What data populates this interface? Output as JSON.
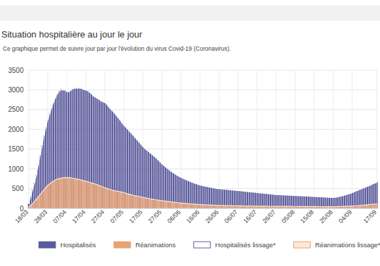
{
  "chart_data": {
    "type": "bar",
    "title": "Situation hospitalière au jour le jour",
    "subtitle": "Ce graphique permet de suivre jour par jour l'évolution du virus Covid-19 (Coronavirus).",
    "categories": [
      "18/03",
      null,
      null,
      null,
      null,
      null,
      null,
      null,
      null,
      null,
      "28/03",
      null,
      null,
      null,
      null,
      null,
      null,
      null,
      null,
      null,
      "07/04",
      null,
      null,
      null,
      null,
      null,
      null,
      null,
      null,
      null,
      "17/04",
      null,
      null,
      null,
      null,
      null,
      null,
      null,
      null,
      null,
      "27/04",
      null,
      null,
      null,
      null,
      null,
      null,
      null,
      null,
      null,
      "07/05",
      null,
      null,
      null,
      null,
      null,
      null,
      null,
      null,
      null,
      "17/05",
      null,
      null,
      null,
      null,
      null,
      null,
      null,
      null,
      null,
      "27/05",
      null,
      null,
      null,
      null,
      null,
      null,
      null,
      null,
      null,
      "06/06",
      null,
      null,
      null,
      null,
      null,
      null,
      null,
      null,
      null,
      "16/06",
      null,
      null,
      null,
      null,
      null,
      null,
      null,
      null,
      null,
      "26/06",
      null,
      null,
      null,
      null,
      null,
      null,
      null,
      null,
      null,
      "06/07",
      null,
      null,
      null,
      null,
      null,
      null,
      null,
      null,
      null,
      "16/07",
      null,
      null,
      null,
      null,
      null,
      null,
      null,
      null,
      null,
      "26/07",
      null,
      null,
      null,
      null,
      null,
      null,
      null,
      null,
      null,
      "05/08",
      null,
      null,
      null,
      null,
      null,
      null,
      null,
      null,
      null,
      "15/08",
      null,
      null,
      null,
      null,
      null,
      null,
      null,
      null,
      null,
      "25/08",
      null,
      null,
      null,
      null,
      null,
      null,
      null,
      null,
      null,
      "04/09",
      null,
      null,
      null,
      null,
      null,
      null,
      null,
      null,
      null,
      null,
      null,
      null,
      "17/09"
    ],
    "series": [
      {
        "name": "Hospitalisés",
        "type": "bar",
        "color": "#5b5a9c",
        "values": [
          120,
          300,
          480,
          650,
          850,
          1100,
          1350,
          1600,
          1850,
          2050,
          2250,
          2400,
          2550,
          2680,
          2800,
          2900,
          2980,
          3020,
          2990,
          3000,
          2950,
          2940,
          2980,
          3030,
          3050,
          3040,
          3060,
          3050,
          3030,
          3010,
          3000,
          2980,
          2940,
          2900,
          2850,
          2820,
          2790,
          2760,
          2720,
          2700,
          2680,
          2640,
          2580,
          2520,
          2470,
          2420,
          2360,
          2300,
          2240,
          2170,
          2110,
          2060,
          2010,
          1950,
          1900,
          1850,
          1790,
          1740,
          1680,
          1620,
          1570,
          1520,
          1480,
          1440,
          1400,
          1360,
          1320,
          1280,
          1230,
          1180,
          1130,
          1090,
          1050,
          1010,
          970,
          930,
          900,
          870,
          840,
          810,
          790,
          760,
          740,
          720,
          700,
          680,
          660,
          640,
          625,
          610,
          595,
          580,
          570,
          560,
          550,
          540,
          530,
          520,
          510,
          505,
          500,
          495,
          490,
          485,
          480,
          475,
          470,
          465,
          460,
          455,
          450,
          445,
          440,
          435,
          430,
          425,
          420,
          415,
          410,
          405,
          400,
          395,
          390,
          385,
          380,
          375,
          370,
          365,
          360,
          355,
          350,
          348,
          345,
          342,
          340,
          338,
          335,
          332,
          330,
          328,
          325,
          322,
          320,
          318,
          315,
          312,
          310,
          308,
          305,
          302,
          300,
          298,
          295,
          292,
          290,
          288,
          285,
          282,
          280,
          278,
          275,
          280,
          290,
          300,
          310,
          320,
          335,
          350,
          365,
          380,
          400,
          420,
          440,
          460,
          480,
          500,
          520,
          540,
          560,
          580,
          600,
          630,
          650,
          660
        ]
      },
      {
        "name": "Réanimations",
        "type": "bar",
        "color": "#e9a274",
        "values": [
          30,
          70,
          120,
          170,
          230,
          290,
          350,
          410,
          470,
          530,
          580,
          620,
          660,
          690,
          720,
          740,
          755,
          765,
          775,
          780,
          785,
          780,
          775,
          765,
          755,
          745,
          735,
          725,
          715,
          700,
          690,
          675,
          660,
          645,
          630,
          615,
          600,
          580,
          560,
          540,
          520,
          505,
          490,
          475,
          460,
          450,
          440,
          430,
          420,
          410,
          400,
          385,
          370,
          355,
          340,
          330,
          320,
          310,
          300,
          290,
          280,
          270,
          260,
          250,
          240,
          232,
          224,
          216,
          208,
          200,
          195,
          188,
          181,
          174,
          168,
          162,
          156,
          150,
          145,
          140,
          135,
          130,
          126,
          122,
          118,
          114,
          110,
          106,
          103,
          100,
          97,
          94,
          91,
          88,
          86,
          84,
          82,
          80,
          78,
          76,
          75,
          74,
          72,
          71,
          70,
          69,
          68,
          67,
          66,
          65,
          64,
          63,
          62,
          61,
          60,
          60,
          59,
          58,
          58,
          57,
          56,
          56,
          55,
          55,
          54,
          54,
          53,
          53,
          52,
          52,
          52,
          51,
          51,
          50,
          50,
          50,
          49,
          49,
          49,
          48,
          48,
          48,
          47,
          47,
          47,
          46,
          46,
          46,
          45,
          45,
          45,
          45,
          44,
          44,
          44,
          44,
          43,
          43,
          43,
          43,
          43,
          44,
          45,
          46,
          48,
          50,
          52,
          54,
          56,
          58,
          60,
          63,
          66,
          70,
          74,
          78,
          82,
          86,
          90,
          95,
          100,
          105,
          110,
          115
        ]
      },
      {
        "name": "Hospitalisés lissage*",
        "type": "line",
        "color": "#ffffff",
        "values": [
          120,
          300,
          480,
          650,
          850,
          1100,
          1350,
          1600,
          1850,
          2050,
          2250,
          2400,
          2550,
          2680,
          2800,
          2900,
          2970,
          3000,
          3000,
          2990,
          2970,
          2970,
          2990,
          3020,
          3040,
          3045,
          3050,
          3045,
          3030,
          3010,
          3000,
          2980,
          2940,
          2900,
          2850,
          2820,
          2790,
          2760,
          2720,
          2700,
          2680,
          2640,
          2580,
          2520,
          2470,
          2420,
          2360,
          2300,
          2240,
          2170,
          2110,
          2060,
          2010,
          1950,
          1900,
          1850,
          1790,
          1740,
          1680,
          1620,
          1570,
          1520,
          1480,
          1440,
          1400,
          1360,
          1320,
          1280,
          1230,
          1180,
          1130,
          1090,
          1050,
          1010,
          970,
          930,
          900,
          870,
          840,
          810,
          790,
          760,
          740,
          720,
          700,
          680,
          660,
          640,
          625,
          610,
          595,
          580,
          570,
          560,
          550,
          540,
          530,
          520,
          510,
          505,
          500,
          495,
          490,
          485,
          480,
          475,
          470,
          465,
          460,
          455,
          450,
          445,
          440,
          435,
          430,
          425,
          420,
          415,
          410,
          405,
          400,
          395,
          390,
          385,
          380,
          375,
          370,
          365,
          360,
          355,
          350,
          348,
          345,
          342,
          340,
          338,
          335,
          332,
          330,
          328,
          325,
          322,
          320,
          318,
          315,
          312,
          310,
          308,
          305,
          302,
          300,
          298,
          295,
          292,
          290,
          288,
          285,
          282,
          280,
          278,
          276,
          280,
          288,
          298,
          308,
          320,
          334,
          349,
          364,
          380,
          399,
          419,
          439,
          459,
          479,
          499,
          519,
          539,
          559,
          579,
          600,
          625,
          645,
          655
        ]
      },
      {
        "name": "Réanimations lissage*",
        "type": "line",
        "color": "#fde9d6",
        "values": [
          30,
          70,
          120,
          170,
          230,
          290,
          350,
          410,
          470,
          530,
          580,
          620,
          660,
          690,
          720,
          740,
          755,
          765,
          775,
          780,
          783,
          780,
          775,
          765,
          755,
          745,
          735,
          725,
          715,
          700,
          690,
          675,
          660,
          645,
          630,
          615,
          600,
          580,
          560,
          540,
          520,
          505,
          490,
          475,
          460,
          450,
          440,
          430,
          420,
          410,
          400,
          385,
          370,
          355,
          340,
          330,
          320,
          310,
          300,
          290,
          280,
          270,
          260,
          250,
          240,
          232,
          224,
          216,
          208,
          200,
          195,
          188,
          181,
          174,
          168,
          162,
          156,
          150,
          145,
          140,
          135,
          130,
          126,
          122,
          118,
          114,
          110,
          106,
          103,
          100,
          97,
          94,
          91,
          88,
          86,
          84,
          82,
          80,
          78,
          76,
          75,
          74,
          72,
          71,
          70,
          69,
          68,
          67,
          66,
          65,
          64,
          63,
          62,
          61,
          60,
          60,
          59,
          58,
          58,
          57,
          56,
          56,
          55,
          55,
          54,
          54,
          53,
          53,
          52,
          52,
          52,
          51,
          51,
          50,
          50,
          50,
          49,
          49,
          49,
          48,
          48,
          48,
          47,
          47,
          47,
          46,
          46,
          46,
          45,
          45,
          45,
          45,
          44,
          44,
          44,
          44,
          43,
          43,
          43,
          43,
          43,
          44,
          45,
          46,
          48,
          50,
          52,
          54,
          56,
          58,
          60,
          63,
          66,
          70,
          74,
          78,
          82,
          86,
          90,
          95,
          100,
          105,
          110,
          115
        ]
      }
    ],
    "ylim": [
      0,
      3500
    ],
    "yticks": [
      0,
      500,
      1000,
      1500,
      2000,
      2500,
      3000,
      3500
    ],
    "grid": true,
    "legend": "bottom"
  }
}
